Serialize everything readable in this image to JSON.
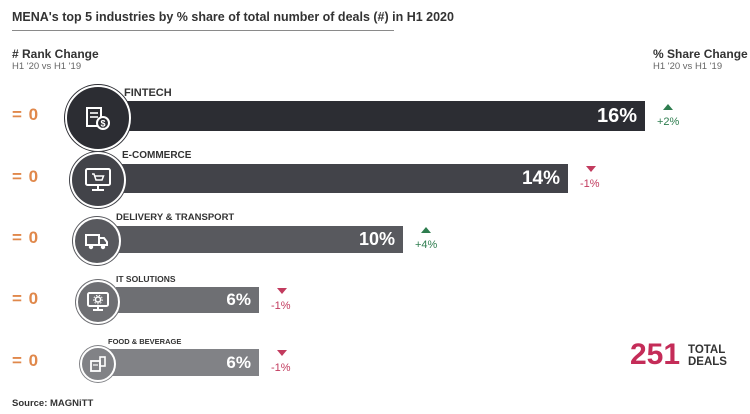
{
  "title": "MENA's top 5 industries by % share of total number of deals (#) in H1 2020",
  "left_header": {
    "label": "# Rank Change",
    "sub": "H1 '20 vs H1 '19"
  },
  "right_header": {
    "label": "% Share Change",
    "sub": "H1 '20 vs H1 '19"
  },
  "chart_data": {
    "type": "bar",
    "orientation": "horizontal",
    "categories": [
      "FINTECH",
      "E-COMMERCE",
      "DELIVERY & TRANSPORT",
      "IT SOLUTIONS",
      "FOOD & BEVERAGE"
    ],
    "values": [
      16,
      14,
      10,
      6,
      6
    ],
    "value_labels": [
      "16%",
      "14%",
      "10%",
      "6%",
      "6%"
    ],
    "rank_change": [
      "= 0",
      "= 0",
      "= 0",
      "= 0",
      "= 0"
    ],
    "share_change": [
      "+2%",
      "-1%",
      "+4%",
      "-1%",
      "-1%"
    ],
    "share_change_direction": [
      "up",
      "down",
      "up",
      "down",
      "down"
    ],
    "icons": [
      "fintech-icon",
      "ecommerce-icon",
      "delivery-truck-icon",
      "it-solutions-icon",
      "food-beverage-icon"
    ],
    "bar_colors": [
      "#2c2d33",
      "#424349",
      "#58595e",
      "#6e6f73",
      "#818286"
    ]
  },
  "colors": {
    "rank": "#e0884b",
    "up": "#2e7d4f",
    "down": "#c23b5e",
    "total": "#c42c58"
  },
  "total": {
    "value": "251",
    "label_line1": "TOTAL",
    "label_line2": "DEALS"
  },
  "source": "Source: MAGNiTT"
}
